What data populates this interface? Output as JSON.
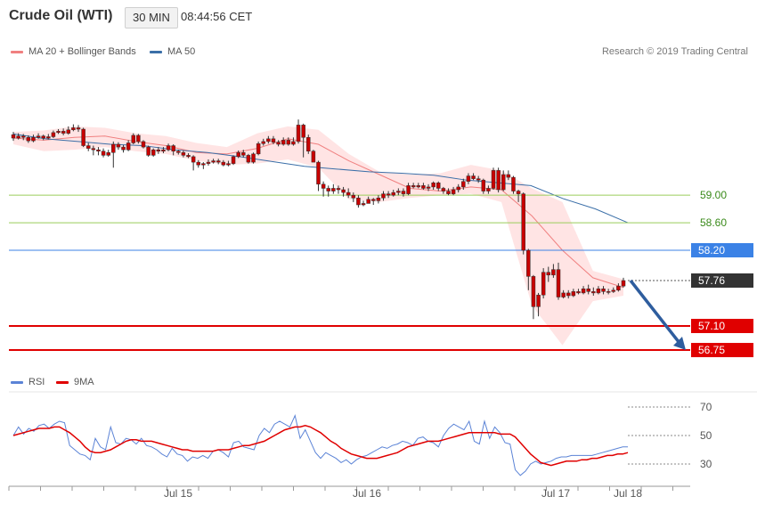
{
  "header": {
    "title": "Crude Oil (WTI)",
    "timeframe": "30 MIN",
    "clock": "08:44:56 CET"
  },
  "legend": {
    "bollinger": {
      "label": "MA 20 + Bollinger Bands",
      "color": "#f08080"
    },
    "ma50": {
      "label": "MA 50",
      "color": "#3b6fa8"
    },
    "copyright": "Research © 2019 Trading Central"
  },
  "rsi_legend": {
    "rsi": {
      "label": "RSI",
      "color": "#5b83d6"
    },
    "ma9": {
      "label": "9MA",
      "color": "#e00000"
    }
  },
  "colors": {
    "candle": "#c80000",
    "support_strong": "#e00000",
    "pivot": "#3b82e6",
    "resistance": "#9acd5a",
    "band_fill": "#ffe4e4"
  },
  "chart_data": [
    {
      "type": "candlestick",
      "title": "Crude Oil (WTI)",
      "ylim": [
        56.6,
        60.1
      ],
      "x_tick_labels": [
        "Jul 15",
        "Jul 16",
        "Jul 17",
        "Jul 18"
      ],
      "candles": [
        [
          59.88,
          59.83,
          59.92,
          59.79
        ],
        [
          59.83,
          59.86,
          59.9,
          59.81
        ],
        [
          59.86,
          59.84,
          59.89,
          59.8
        ],
        [
          59.84,
          59.79,
          59.87,
          59.76
        ],
        [
          59.79,
          59.84,
          59.88,
          59.77
        ],
        [
          59.84,
          59.86,
          59.9,
          59.82
        ],
        [
          59.86,
          59.83,
          59.88,
          59.8
        ],
        [
          59.83,
          59.85,
          59.89,
          59.81
        ],
        [
          59.85,
          59.91,
          59.94,
          59.83
        ],
        [
          59.91,
          59.93,
          59.96,
          59.89
        ],
        [
          59.93,
          59.9,
          59.97,
          59.87
        ],
        [
          59.9,
          59.95,
          60.0,
          59.88
        ],
        [
          59.95,
          59.98,
          60.03,
          59.93
        ],
        [
          59.98,
          59.96,
          60.02,
          59.92
        ],
        [
          59.96,
          59.72,
          59.98,
          59.7
        ],
        [
          59.72,
          59.68,
          59.76,
          59.64
        ],
        [
          59.68,
          59.66,
          59.72,
          59.58
        ],
        [
          59.66,
          59.64,
          59.7,
          59.58
        ],
        [
          59.64,
          59.58,
          59.68,
          59.55
        ],
        [
          59.58,
          59.62,
          59.66,
          59.56
        ],
        [
          59.62,
          59.74,
          59.78,
          59.4
        ],
        [
          59.74,
          59.7,
          59.77,
          59.66
        ],
        [
          59.7,
          59.66,
          59.73,
          59.62
        ],
        [
          59.66,
          59.76,
          59.8,
          59.64
        ],
        [
          59.76,
          59.87,
          59.9,
          59.74
        ],
        [
          59.87,
          59.78,
          59.89,
          59.75
        ],
        [
          59.78,
          59.7,
          59.8,
          59.68
        ],
        [
          59.7,
          59.58,
          59.72,
          59.56
        ],
        [
          59.58,
          59.66,
          59.68,
          59.56
        ],
        [
          59.66,
          59.64,
          59.7,
          59.6
        ],
        [
          59.64,
          59.66,
          59.7,
          59.61
        ],
        [
          59.66,
          59.72,
          59.75,
          59.64
        ],
        [
          59.72,
          59.64,
          59.74,
          59.58
        ],
        [
          59.64,
          59.62,
          59.66,
          59.59
        ],
        [
          59.62,
          59.58,
          59.65,
          59.55
        ],
        [
          59.58,
          59.56,
          59.61,
          59.54
        ],
        [
          59.56,
          59.48,
          59.58,
          59.36
        ],
        [
          59.48,
          59.44,
          59.51,
          59.4
        ],
        [
          59.44,
          59.46,
          59.48,
          59.38
        ],
        [
          59.46,
          59.48,
          59.52,
          59.43
        ],
        [
          59.48,
          59.5,
          59.53,
          59.46
        ],
        [
          59.5,
          59.48,
          59.53,
          59.45
        ],
        [
          59.48,
          59.44,
          59.51,
          59.42
        ],
        [
          59.44,
          59.46,
          59.5,
          59.42
        ],
        [
          59.46,
          59.56,
          59.58,
          59.44
        ],
        [
          59.56,
          59.62,
          59.65,
          59.54
        ],
        [
          59.62,
          59.58,
          59.66,
          59.55
        ],
        [
          59.58,
          59.48,
          59.6,
          59.46
        ],
        [
          59.48,
          59.6,
          59.62,
          59.46
        ],
        [
          59.6,
          59.75,
          59.78,
          59.58
        ],
        [
          59.75,
          59.78,
          59.82,
          59.72
        ],
        [
          59.78,
          59.82,
          59.86,
          59.75
        ],
        [
          59.82,
          59.77,
          59.86,
          59.74
        ],
        [
          59.77,
          59.74,
          59.8,
          59.71
        ],
        [
          59.74,
          59.8,
          59.84,
          59.72
        ],
        [
          59.8,
          59.74,
          59.84,
          59.72
        ],
        [
          59.74,
          59.78,
          59.84,
          59.72
        ],
        [
          59.78,
          60.02,
          60.1,
          59.75
        ],
        [
          60.02,
          59.84,
          60.04,
          59.55
        ],
        [
          59.84,
          59.64,
          59.88,
          59.6
        ],
        [
          59.64,
          59.48,
          59.66,
          59.5
        ],
        [
          59.48,
          59.16,
          59.5,
          59.06
        ],
        [
          59.16,
          59.1,
          59.2,
          58.98
        ],
        [
          59.1,
          59.06,
          59.14,
          58.98
        ],
        [
          59.06,
          59.1,
          59.16,
          59.02
        ],
        [
          59.1,
          59.08,
          59.14,
          59.02
        ],
        [
          59.08,
          59.04,
          59.12,
          58.98
        ],
        [
          59.04,
          59.0,
          59.1,
          58.96
        ],
        [
          59.0,
          58.96,
          59.04,
          58.9
        ],
        [
          58.96,
          58.86,
          59.0,
          58.82
        ],
        [
          58.86,
          58.88,
          58.92,
          58.84
        ],
        [
          58.88,
          58.94,
          58.98,
          58.88
        ],
        [
          58.94,
          58.92,
          58.96,
          58.86
        ],
        [
          58.92,
          58.96,
          59.0,
          58.88
        ],
        [
          58.96,
          59.02,
          59.06,
          58.92
        ],
        [
          59.02,
          59.0,
          59.06,
          58.96
        ],
        [
          59.0,
          59.04,
          59.08,
          58.98
        ],
        [
          59.04,
          59.06,
          59.1,
          59.0
        ],
        [
          59.06,
          59.02,
          59.1,
          58.98
        ],
        [
          59.02,
          59.14,
          59.18,
          59.0
        ],
        [
          59.14,
          59.12,
          59.18,
          59.1
        ],
        [
          59.12,
          59.14,
          59.18,
          59.1
        ],
        [
          59.14,
          59.1,
          59.18,
          59.08
        ],
        [
          59.1,
          59.12,
          59.16,
          59.06
        ],
        [
          59.12,
          59.18,
          59.2,
          59.08
        ],
        [
          59.18,
          59.1,
          59.2,
          59.06
        ],
        [
          59.1,
          59.06,
          59.12,
          59.02
        ],
        [
          59.06,
          59.02,
          59.1,
          59.0
        ],
        [
          59.02,
          59.08,
          59.12,
          59.0
        ],
        [
          59.08,
          59.12,
          59.16,
          59.04
        ],
        [
          59.12,
          59.2,
          59.24,
          59.08
        ],
        [
          59.2,
          59.28,
          59.32,
          59.16
        ],
        [
          59.28,
          59.24,
          59.32,
          59.22
        ],
        [
          59.24,
          59.22,
          59.28,
          59.18
        ],
        [
          59.22,
          59.06,
          59.24,
          59.02
        ],
        [
          59.06,
          59.1,
          59.14,
          59.02
        ],
        [
          59.1,
          59.36,
          59.4,
          59.08
        ],
        [
          59.36,
          59.08,
          59.4,
          59.04
        ],
        [
          59.08,
          59.3,
          59.36,
          59.06
        ],
        [
          59.3,
          59.26,
          59.36,
          59.22
        ],
        [
          59.26,
          59.06,
          59.28,
          59.02
        ],
        [
          59.06,
          59.02,
          59.08,
          58.9
        ],
        [
          59.02,
          58.2,
          59.04,
          58.14
        ],
        [
          58.2,
          57.82,
          58.22,
          57.62
        ],
        [
          57.82,
          57.38,
          57.84,
          57.2
        ],
        [
          57.38,
          57.55,
          57.58,
          57.24
        ],
        [
          57.55,
          57.88,
          57.94,
          57.5
        ],
        [
          57.88,
          57.84,
          57.96,
          57.74
        ],
        [
          57.84,
          57.92,
          58.0,
          57.8
        ],
        [
          57.92,
          57.52,
          58.02,
          57.48
        ],
        [
          57.52,
          57.58,
          57.62,
          57.5
        ],
        [
          57.58,
          57.54,
          57.62,
          57.5
        ],
        [
          57.54,
          57.6,
          57.64,
          57.52
        ],
        [
          57.6,
          57.58,
          57.64,
          57.56
        ],
        [
          57.58,
          57.64,
          57.68,
          57.56
        ],
        [
          57.64,
          57.6,
          57.7,
          57.56
        ],
        [
          57.6,
          57.58,
          57.66,
          57.54
        ],
        [
          57.58,
          57.64,
          57.68,
          57.56
        ],
        [
          57.64,
          57.6,
          57.68,
          57.56
        ],
        [
          57.6,
          57.6,
          57.64,
          57.56
        ],
        [
          57.6,
          57.62,
          57.66,
          57.58
        ],
        [
          57.62,
          57.68,
          57.72,
          57.6
        ],
        [
          57.68,
          57.76,
          57.8,
          57.66
        ]
      ],
      "ma50_y": [
        59.89,
        59.82,
        59.78,
        59.74,
        59.72,
        59.66,
        59.62,
        59.56,
        59.49,
        59.42,
        59.38,
        59.34,
        59.32,
        59.29,
        59.22,
        59.18,
        59.14,
        58.95,
        58.8,
        58.6
      ],
      "bollinger": {
        "mid": [
          59.83,
          59.8,
          59.84,
          59.86,
          59.78,
          59.72,
          59.62,
          59.6,
          59.68,
          59.82,
          59.74,
          59.5,
          59.3,
          59.1,
          59.06,
          59.12,
          59.08,
          58.7,
          58.2,
          57.8,
          57.66
        ],
        "upper": [
          59.92,
          59.94,
          60.0,
          59.98,
          59.9,
          59.86,
          59.76,
          59.7,
          59.9,
          60.0,
          59.95,
          59.6,
          59.34,
          59.3,
          59.32,
          59.44,
          59.36,
          59.1,
          58.9,
          57.9,
          57.78
        ],
        "lower": [
          59.74,
          59.64,
          59.66,
          59.7,
          59.64,
          59.6,
          59.5,
          59.44,
          59.46,
          59.52,
          59.4,
          58.94,
          58.9,
          58.96,
          59.0,
          59.02,
          58.9,
          57.4,
          56.82,
          57.46,
          57.54
        ]
      },
      "levels": [
        {
          "value": 59.0,
          "label": "59.00",
          "style": "resistance"
        },
        {
          "value": 58.6,
          "label": "58.60",
          "style": "resistance"
        },
        {
          "value": 58.2,
          "label": "58.20",
          "style": "pivot"
        },
        {
          "value": 57.76,
          "label": "57.76",
          "style": "last"
        },
        {
          "value": 57.1,
          "label": "57.10",
          "style": "support"
        },
        {
          "value": 56.75,
          "label": "56.75",
          "style": "support"
        }
      ]
    },
    {
      "type": "line",
      "ylim": [
        15,
        80
      ],
      "y_ticks": [
        30,
        50,
        70
      ],
      "series": [
        {
          "name": "RSI",
          "values": [
            50,
            56,
            51,
            55,
            53,
            57,
            58,
            55,
            58,
            60,
            59,
            43,
            40,
            37,
            36,
            33,
            48,
            42,
            40,
            56,
            45,
            44,
            48,
            47,
            44,
            48,
            43,
            42,
            40,
            37,
            35,
            41,
            37,
            36,
            32,
            35,
            34,
            36,
            34,
            39,
            40,
            38,
            35,
            45,
            46,
            42,
            41,
            40,
            50,
            55,
            52,
            58,
            60,
            58,
            56,
            64,
            48,
            54,
            46,
            38,
            34,
            38,
            36,
            34,
            31,
            33,
            30,
            33,
            35,
            36,
            38,
            40,
            42,
            41,
            43,
            44,
            46,
            45,
            43,
            48,
            49,
            46,
            45,
            42,
            50,
            55,
            58,
            56,
            54,
            60,
            46,
            44,
            60,
            48,
            56,
            52,
            45,
            44,
            26,
            22,
            25,
            30,
            32,
            30,
            31,
            32,
            34,
            35,
            35,
            36,
            36,
            36,
            36,
            36,
            37,
            38,
            39,
            40,
            41,
            42,
            42
          ]
        },
        {
          "name": "9MA",
          "values": [
            50,
            51,
            52,
            53,
            54,
            55,
            55,
            55,
            56,
            56,
            54,
            52,
            49,
            46,
            42,
            39,
            38,
            38,
            39,
            40,
            42,
            44,
            46,
            47,
            47,
            46,
            46,
            46,
            45,
            44,
            43,
            42,
            41,
            40,
            40,
            39,
            39,
            39,
            39,
            39,
            40,
            40,
            40,
            41,
            42,
            43,
            43,
            44,
            45,
            46,
            48,
            50,
            52,
            54,
            55,
            56,
            56,
            57,
            56,
            54,
            52,
            49,
            46,
            44,
            41,
            39,
            37,
            36,
            35,
            34,
            34,
            34,
            35,
            36,
            37,
            38,
            40,
            42,
            43,
            44,
            45,
            46,
            46,
            46,
            47,
            48,
            49,
            50,
            51,
            52,
            52,
            52,
            52,
            52,
            52,
            51,
            51,
            51,
            49,
            45,
            41,
            37,
            34,
            31,
            30,
            29,
            30,
            31,
            32,
            32,
            32,
            33,
            33,
            34,
            34,
            35,
            36,
            36,
            37,
            37,
            38
          ]
        }
      ]
    }
  ]
}
